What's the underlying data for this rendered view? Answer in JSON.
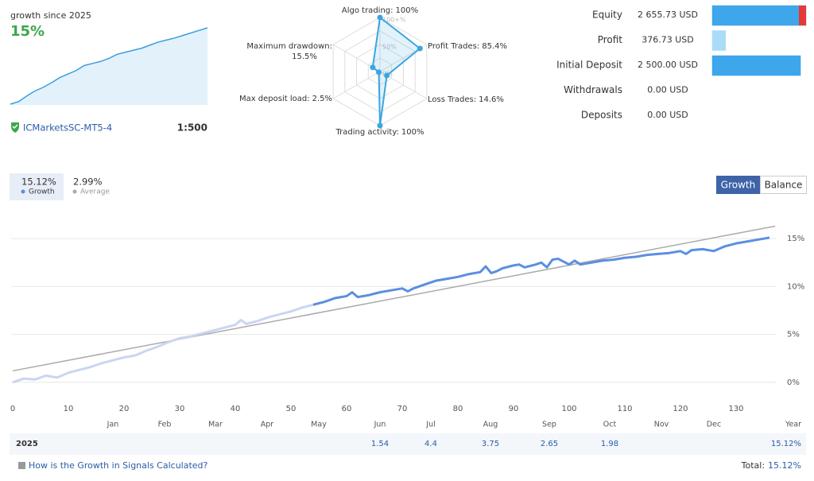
{
  "header": {
    "label": "growth since 2025",
    "value": "15%"
  },
  "mini_chart": {
    "color": "#3a9ee0",
    "fill": "#e3f1fb",
    "values": [
      0,
      0.5,
      1.6,
      2.6,
      3.3,
      4.2,
      5.2,
      5.9,
      6.6,
      7.6,
      8.0,
      8.4,
      9.0,
      9.8,
      10.2,
      10.6,
      11.0,
      11.6,
      12.2,
      12.6,
      13.0,
      13.5,
      14.0,
      14.5,
      15.0
    ]
  },
  "account": {
    "broker": "ICMarketsSC-MT5-4",
    "leverage": "1:500"
  },
  "radar": {
    "color": "#3aa6e0",
    "ring_labels": [
      {
        "value": 100,
        "label": "100+%"
      },
      {
        "value": 50,
        "label": "50%"
      },
      {
        "value": 0,
        "label": "0%"
      }
    ],
    "axes": [
      {
        "name": "Algo trading:",
        "value": 100,
        "value_label": "100%"
      },
      {
        "name": "Profit Trades:",
        "value": 85.4,
        "value_label": "85.4%"
      },
      {
        "name": "Loss Trades:",
        "value": 14.6,
        "value_label": "14.6%"
      },
      {
        "name": "Trading activity:",
        "value": 100,
        "value_label": "100%"
      },
      {
        "name": "Max deposit load:",
        "value": 2.5,
        "value_label": "2.5%"
      },
      {
        "name": "Maximum drawdown:",
        "value": 15.5,
        "value_label": "15.5%"
      }
    ]
  },
  "balance": {
    "rows": [
      {
        "label": "Equity",
        "value": 2655.73,
        "value_label": "2 655.73 USD",
        "color": "#3ea6ea"
      },
      {
        "label": "Profit",
        "value": 376.73,
        "value_label": "376.73 USD",
        "color": "#a9dcf7"
      },
      {
        "label": "Initial Deposit",
        "value": 2500.0,
        "value_label": "2 500.00 USD",
        "color": "#3ea6ea"
      },
      {
        "label": "Withdrawals",
        "value": 0,
        "value_label": "0.00 USD",
        "color": "#d4ecfa"
      },
      {
        "label": "Deposits",
        "value": 0,
        "value_label": "0.00 USD",
        "color": "#d4ecfa"
      }
    ]
  },
  "stats": [
    {
      "value": "15.12%",
      "label": "Growth",
      "color": "#5b8fe0"
    },
    {
      "value": "2.99%",
      "label": "Average",
      "color": "#aaaaaa"
    }
  ],
  "buttons": [
    "Growth",
    "Balance"
  ],
  "growth_chart": {
    "type": "line",
    "xlim": [
      0,
      137
    ],
    "xticks": [
      0,
      10,
      20,
      30,
      40,
      50,
      60,
      70,
      80,
      90,
      100,
      110,
      120,
      130
    ],
    "ylim": [
      -2,
      17.5
    ],
    "yticks": [
      {
        "value": 0,
        "label": "0%"
      },
      {
        "value": 5,
        "label": "5%"
      },
      {
        "value": 10,
        "label": "10%"
      },
      {
        "value": 15,
        "label": "15%"
      }
    ],
    "grid": true,
    "series": [
      {
        "color": "#aaaaaa",
        "line_width": 1.5,
        "x": [
          0,
          137
        ],
        "values": [
          1.2,
          16.3
        ]
      },
      {
        "color": "#c9d6f2",
        "line_width": 3,
        "x": [
          0,
          2,
          4,
          6,
          8,
          10,
          12,
          14,
          16,
          18,
          20,
          22,
          24,
          26,
          28,
          30,
          32,
          34,
          36,
          38,
          40,
          41,
          42,
          44,
          46,
          48,
          50,
          52,
          54
        ],
        "values": [
          0,
          0.4,
          0.3,
          0.7,
          0.5,
          1.0,
          1.3,
          1.6,
          2.0,
          2.3,
          2.6,
          2.8,
          3.3,
          3.7,
          4.2,
          4.6,
          4.8,
          5.1,
          5.4,
          5.7,
          6.0,
          6.5,
          6.1,
          6.4,
          6.8,
          7.1,
          7.4,
          7.8,
          8.1
        ]
      },
      {
        "color": "#5b8fe0",
        "line_width": 3,
        "x": [
          54,
          56,
          58,
          60,
          61,
          62,
          64,
          66,
          68,
          70,
          71,
          72,
          74,
          76,
          78,
          80,
          82,
          84,
          85,
          86,
          87,
          88,
          90,
          91,
          92,
          94,
          95,
          96,
          97,
          98,
          100,
          101,
          102,
          104,
          106,
          108,
          110,
          112,
          114,
          116,
          118,
          120,
          121,
          122,
          124,
          126,
          128,
          130,
          132,
          134,
          136
        ],
        "values": [
          8.1,
          8.4,
          8.8,
          9.0,
          9.4,
          8.9,
          9.1,
          9.4,
          9.6,
          9.8,
          9.5,
          9.8,
          10.2,
          10.6,
          10.8,
          11.0,
          11.3,
          11.5,
          12.1,
          11.4,
          11.6,
          11.9,
          12.2,
          12.3,
          12.0,
          12.3,
          12.5,
          12.0,
          12.8,
          12.9,
          12.3,
          12.7,
          12.3,
          12.5,
          12.7,
          12.8,
          13.0,
          13.1,
          13.3,
          13.4,
          13.5,
          13.7,
          13.4,
          13.8,
          13.9,
          13.7,
          14.2,
          14.5,
          14.7,
          14.9,
          15.1
        ]
      }
    ]
  },
  "table": {
    "columns": [
      "Jan",
      "Feb",
      "Mar",
      "Apr",
      "May",
      "Jun",
      "Jul",
      "Aug",
      "Sep",
      "Oct",
      "Nov",
      "Dec",
      "Year"
    ],
    "rows": [
      {
        "year": "2025",
        "values": [
          null,
          null,
          null,
          null,
          null,
          1.54,
          4.4,
          3.75,
          2.65,
          1.98,
          null,
          null
        ],
        "total": "15.12%"
      }
    ]
  },
  "footer": {
    "link": "How is the Growth in Signals Calculated?",
    "total_label": "Total:",
    "total_value": "15.12%"
  }
}
